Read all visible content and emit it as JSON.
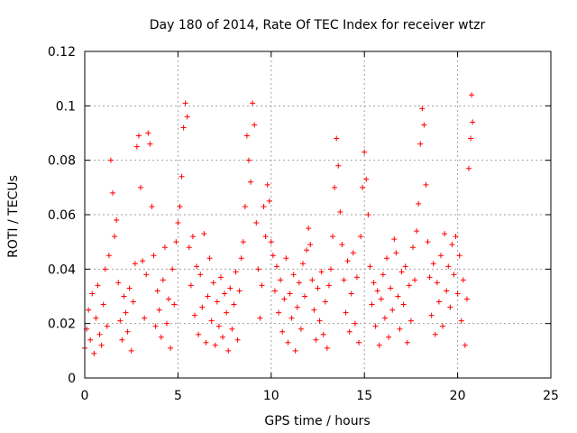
{
  "chart_data": {
    "type": "scatter",
    "title": "Day 180 of 2014, Rate Of TEC Index for receiver wtzr",
    "xlabel": "GPS time / hours",
    "ylabel": "ROTI / TECUs",
    "xlim": [
      0,
      25
    ],
    "ylim": [
      0,
      0.12
    ],
    "x_ticks": [
      "0",
      "5",
      "10",
      "15",
      "20",
      "25"
    ],
    "y_ticks": [
      "0",
      "0.02",
      "0.04",
      "0.06",
      "0.08",
      "0.1",
      "0.12"
    ],
    "grid": true,
    "marker": "+",
    "color": "#ff0000",
    "series": [
      {
        "name": "ROTI",
        "points": [
          [
            0.0,
            0.011
          ],
          [
            0.1,
            0.018
          ],
          [
            0.2,
            0.025
          ],
          [
            0.3,
            0.014
          ],
          [
            0.4,
            0.031
          ],
          [
            0.5,
            0.009
          ],
          [
            0.6,
            0.022
          ],
          [
            0.7,
            0.034
          ],
          [
            0.8,
            0.016
          ],
          [
            0.9,
            0.012
          ],
          [
            1.0,
            0.027
          ],
          [
            1.1,
            0.04
          ],
          [
            1.2,
            0.019
          ],
          [
            1.3,
            0.045
          ],
          [
            1.4,
            0.08
          ],
          [
            1.5,
            0.068
          ],
          [
            1.6,
            0.052
          ],
          [
            1.7,
            0.058
          ],
          [
            1.8,
            0.035
          ],
          [
            1.9,
            0.021
          ],
          [
            2.0,
            0.014
          ],
          [
            2.1,
            0.03
          ],
          [
            2.2,
            0.024
          ],
          [
            2.3,
            0.017
          ],
          [
            2.4,
            0.033
          ],
          [
            2.5,
            0.01
          ],
          [
            2.6,
            0.028
          ],
          [
            2.7,
            0.042
          ],
          [
            2.8,
            0.085
          ],
          [
            2.9,
            0.089
          ],
          [
            3.0,
            0.07
          ],
          [
            3.1,
            0.043
          ],
          [
            3.2,
            0.022
          ],
          [
            3.3,
            0.038
          ],
          [
            3.4,
            0.09
          ],
          [
            3.5,
            0.086
          ],
          [
            3.6,
            0.063
          ],
          [
            3.7,
            0.045
          ],
          [
            3.8,
            0.019
          ],
          [
            3.9,
            0.032
          ],
          [
            4.0,
            0.025
          ],
          [
            4.1,
            0.015
          ],
          [
            4.2,
            0.036
          ],
          [
            4.3,
            0.048
          ],
          [
            4.4,
            0.02
          ],
          [
            4.5,
            0.029
          ],
          [
            4.6,
            0.011
          ],
          [
            4.7,
            0.04
          ],
          [
            4.8,
            0.027
          ],
          [
            4.9,
            0.05
          ],
          [
            5.0,
            0.057
          ],
          [
            5.1,
            0.063
          ],
          [
            5.2,
            0.074
          ],
          [
            5.3,
            0.092
          ],
          [
            5.4,
            0.101
          ],
          [
            5.5,
            0.096
          ],
          [
            5.6,
            0.048
          ],
          [
            5.7,
            0.034
          ],
          [
            5.8,
            0.052
          ],
          [
            5.9,
            0.023
          ],
          [
            6.0,
            0.041
          ],
          [
            6.1,
            0.016
          ],
          [
            6.2,
            0.038
          ],
          [
            6.3,
            0.026
          ],
          [
            6.4,
            0.053
          ],
          [
            6.5,
            0.013
          ],
          [
            6.6,
            0.03
          ],
          [
            6.7,
            0.044
          ],
          [
            6.8,
            0.021
          ],
          [
            6.9,
            0.035
          ],
          [
            7.0,
            0.012
          ],
          [
            7.1,
            0.028
          ],
          [
            7.2,
            0.019
          ],
          [
            7.3,
            0.037
          ],
          [
            7.4,
            0.015
          ],
          [
            7.5,
            0.031
          ],
          [
            7.6,
            0.024
          ],
          [
            7.7,
            0.01
          ],
          [
            7.8,
            0.033
          ],
          [
            7.9,
            0.018
          ],
          [
            8.0,
            0.027
          ],
          [
            8.1,
            0.039
          ],
          [
            8.2,
            0.014
          ],
          [
            8.3,
            0.032
          ],
          [
            8.4,
            0.044
          ],
          [
            8.5,
            0.05
          ],
          [
            8.6,
            0.063
          ],
          [
            8.7,
            0.089
          ],
          [
            8.8,
            0.08
          ],
          [
            8.9,
            0.072
          ],
          [
            9.0,
            0.101
          ],
          [
            9.1,
            0.093
          ],
          [
            9.2,
            0.057
          ],
          [
            9.3,
            0.04
          ],
          [
            9.4,
            0.022
          ],
          [
            9.5,
            0.034
          ],
          [
            9.6,
            0.063
          ],
          [
            9.7,
            0.052
          ],
          [
            9.8,
            0.071
          ],
          [
            9.9,
            0.065
          ],
          [
            10.0,
            0.05
          ],
          [
            10.1,
            0.045
          ],
          [
            10.2,
            0.032
          ],
          [
            10.3,
            0.041
          ],
          [
            10.4,
            0.024
          ],
          [
            10.5,
            0.036
          ],
          [
            10.6,
            0.017
          ],
          [
            10.7,
            0.029
          ],
          [
            10.8,
            0.044
          ],
          [
            10.9,
            0.013
          ],
          [
            11.0,
            0.031
          ],
          [
            11.1,
            0.022
          ],
          [
            11.2,
            0.038
          ],
          [
            11.3,
            0.01
          ],
          [
            11.4,
            0.026
          ],
          [
            11.5,
            0.035
          ],
          [
            11.6,
            0.018
          ],
          [
            11.7,
            0.042
          ],
          [
            11.8,
            0.03
          ],
          [
            11.9,
            0.047
          ],
          [
            12.0,
            0.055
          ],
          [
            12.1,
            0.049
          ],
          [
            12.2,
            0.036
          ],
          [
            12.3,
            0.025
          ],
          [
            12.4,
            0.014
          ],
          [
            12.5,
            0.033
          ],
          [
            12.6,
            0.021
          ],
          [
            12.7,
            0.039
          ],
          [
            12.8,
            0.016
          ],
          [
            12.9,
            0.028
          ],
          [
            13.0,
            0.011
          ],
          [
            13.1,
            0.034
          ],
          [
            13.2,
            0.04
          ],
          [
            13.3,
            0.052
          ],
          [
            13.4,
            0.07
          ],
          [
            13.5,
            0.088
          ],
          [
            13.6,
            0.078
          ],
          [
            13.7,
            0.061
          ],
          [
            13.8,
            0.049
          ],
          [
            13.9,
            0.036
          ],
          [
            14.0,
            0.024
          ],
          [
            14.1,
            0.043
          ],
          [
            14.2,
            0.017
          ],
          [
            14.3,
            0.031
          ],
          [
            14.4,
            0.046
          ],
          [
            14.5,
            0.02
          ],
          [
            14.6,
            0.037
          ],
          [
            14.7,
            0.013
          ],
          [
            14.8,
            0.052
          ],
          [
            14.9,
            0.07
          ],
          [
            15.0,
            0.083
          ],
          [
            15.1,
            0.073
          ],
          [
            15.2,
            0.06
          ],
          [
            15.3,
            0.041
          ],
          [
            15.4,
            0.027
          ],
          [
            15.5,
            0.035
          ],
          [
            15.6,
            0.019
          ],
          [
            15.7,
            0.032
          ],
          [
            15.8,
            0.012
          ],
          [
            15.9,
            0.029
          ],
          [
            16.0,
            0.038
          ],
          [
            16.1,
            0.022
          ],
          [
            16.2,
            0.044
          ],
          [
            16.3,
            0.015
          ],
          [
            16.4,
            0.033
          ],
          [
            16.5,
            0.025
          ],
          [
            16.6,
            0.051
          ],
          [
            16.7,
            0.046
          ],
          [
            16.8,
            0.03
          ],
          [
            16.9,
            0.018
          ],
          [
            17.0,
            0.039
          ],
          [
            17.1,
            0.027
          ],
          [
            17.2,
            0.041
          ],
          [
            17.3,
            0.013
          ],
          [
            17.4,
            0.034
          ],
          [
            17.5,
            0.021
          ],
          [
            17.6,
            0.048
          ],
          [
            17.7,
            0.036
          ],
          [
            17.8,
            0.054
          ],
          [
            17.9,
            0.064
          ],
          [
            18.0,
            0.086
          ],
          [
            18.1,
            0.099
          ],
          [
            18.2,
            0.093
          ],
          [
            18.3,
            0.071
          ],
          [
            18.4,
            0.05
          ],
          [
            18.5,
            0.037
          ],
          [
            18.6,
            0.023
          ],
          [
            18.7,
            0.042
          ],
          [
            18.8,
            0.016
          ],
          [
            18.9,
            0.035
          ],
          [
            19.0,
            0.028
          ],
          [
            19.1,
            0.045
          ],
          [
            19.2,
            0.019
          ],
          [
            19.3,
            0.053
          ],
          [
            19.4,
            0.032
          ],
          [
            19.5,
            0.041
          ],
          [
            19.6,
            0.026
          ],
          [
            19.7,
            0.049
          ],
          [
            19.8,
            0.038
          ],
          [
            19.9,
            0.052
          ],
          [
            20.0,
            0.031
          ],
          [
            20.1,
            0.045
          ],
          [
            20.2,
            0.021
          ],
          [
            20.3,
            0.036
          ],
          [
            20.4,
            0.012
          ],
          [
            20.5,
            0.029
          ],
          [
            20.6,
            0.077
          ],
          [
            20.7,
            0.088
          ],
          [
            20.75,
            0.104
          ],
          [
            20.8,
            0.094
          ]
        ]
      }
    ]
  }
}
